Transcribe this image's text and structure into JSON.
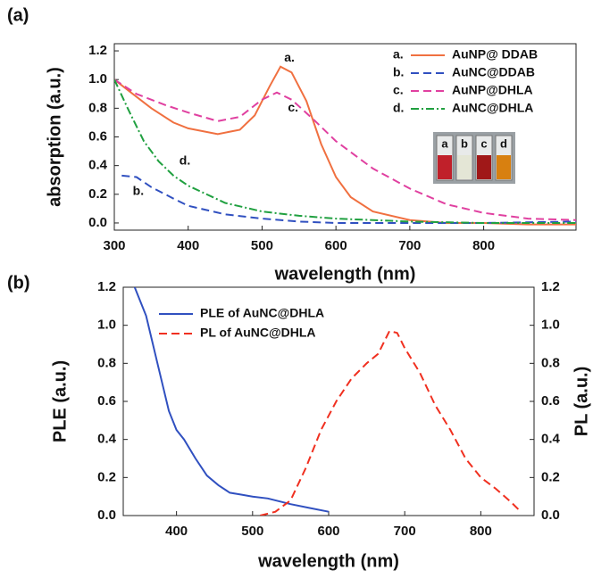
{
  "chart_data": [
    {
      "type": "line",
      "panel_label": "(a)",
      "xlabel": "wavelength (nm)",
      "ylabel": "absorption (a.u.)",
      "xlim": [
        300,
        925
      ],
      "xticks": [
        300,
        400,
        500,
        600,
        700,
        800
      ],
      "ylim": [
        -0.05,
        1.25
      ],
      "yticks": [
        {
          "value": 0,
          "label": "0.0"
        },
        0.2,
        0.4,
        0.6,
        0.8,
        {
          "value": 1,
          "label": "1.0"
        },
        1.2
      ],
      "legend": "upper right",
      "inset_labels": [
        "a",
        "b",
        "c",
        "d"
      ],
      "series": [
        {
          "tag": "a.",
          "name": "AuNP@ DDAB",
          "color": "#f07040",
          "linestyle": "solid",
          "x": [
            300,
            320,
            350,
            380,
            400,
            440,
            470,
            490,
            510,
            525,
            540,
            560,
            580,
            600,
            620,
            650,
            700,
            750,
            800,
            860,
            925
          ],
          "values": [
            1.0,
            0.92,
            0.8,
            0.7,
            0.66,
            0.62,
            0.65,
            0.75,
            0.95,
            1.09,
            1.05,
            0.85,
            0.55,
            0.32,
            0.18,
            0.08,
            0.02,
            0.0,
            0.0,
            -0.01,
            -0.01
          ]
        },
        {
          "tag": "b.",
          "name": "AuNC@DDAB",
          "color": "#3050c0",
          "linestyle": "dashed",
          "x": [
            310,
            330,
            350,
            380,
            400,
            450,
            500,
            550,
            600,
            700,
            800,
            925
          ],
          "values": [
            0.33,
            0.32,
            0.25,
            0.17,
            0.12,
            0.06,
            0.03,
            0.01,
            0.0,
            0.0,
            0.0,
            0.01
          ]
        },
        {
          "tag": "c.",
          "name": "AuNP@DHLA",
          "color": "#e040a0",
          "linestyle": "dashed",
          "x": [
            300,
            330,
            370,
            400,
            440,
            470,
            500,
            520,
            540,
            570,
            600,
            650,
            700,
            750,
            800,
            860,
            925
          ],
          "values": [
            1.0,
            0.9,
            0.82,
            0.77,
            0.71,
            0.74,
            0.86,
            0.91,
            0.86,
            0.72,
            0.57,
            0.38,
            0.24,
            0.13,
            0.07,
            0.03,
            0.02
          ]
        },
        {
          "tag": "d.",
          "name": "AuNC@DHLA",
          "color": "#20a040",
          "linestyle": "dashdot",
          "x": [
            300,
            320,
            340,
            360,
            380,
            400,
            450,
            500,
            550,
            600,
            700,
            800,
            925
          ],
          "values": [
            1.0,
            0.78,
            0.57,
            0.43,
            0.33,
            0.26,
            0.14,
            0.08,
            0.05,
            0.03,
            0.01,
            0.0,
            0.0
          ]
        }
      ]
    },
    {
      "type": "line",
      "panel_label": "(b)",
      "xlabel": "wavelength (nm)",
      "ylabel": "PLE (a.u.)",
      "y2label": "PL (a.u.)",
      "xlim": [
        330,
        870
      ],
      "xticks": [
        400,
        500,
        600,
        700,
        800
      ],
      "ylim": [
        0,
        1.2
      ],
      "yticks": [
        {
          "value": 0,
          "label": "0.0"
        },
        0.2,
        0.4,
        0.6,
        0.8,
        {
          "value": 1,
          "label": "1.0"
        },
        1.2
      ],
      "y2lim": [
        0,
        1.2
      ],
      "y2ticks": [
        {
          "value": 0,
          "label": "0.0"
        },
        0.2,
        0.4,
        0.6,
        0.8,
        {
          "value": 1,
          "label": "1.0"
        },
        1.2
      ],
      "legend": "upper left",
      "series": [
        {
          "name": "PLE of AuNC@DHLA",
          "color": "#3050c0",
          "linestyle": "solid",
          "x": [
            345,
            360,
            375,
            390,
            400,
            410,
            425,
            440,
            455,
            470,
            485,
            500,
            520,
            550,
            575,
            600
          ],
          "values": [
            1.2,
            1.05,
            0.8,
            0.55,
            0.45,
            0.4,
            0.3,
            0.21,
            0.16,
            0.12,
            0.11,
            0.1,
            0.09,
            0.06,
            0.04,
            0.02
          ]
        },
        {
          "name": "PL of AuNC@DHLA",
          "color": "#f03020",
          "linestyle": "dashed",
          "axis": "y2",
          "x": [
            510,
            530,
            550,
            570,
            590,
            610,
            630,
            650,
            665,
            680,
            690,
            700,
            720,
            740,
            760,
            780,
            800,
            820,
            840,
            850
          ],
          "values": [
            0.0,
            0.02,
            0.08,
            0.25,
            0.45,
            0.6,
            0.72,
            0.8,
            0.85,
            0.97,
            0.96,
            0.88,
            0.75,
            0.58,
            0.45,
            0.3,
            0.2,
            0.14,
            0.07,
            0.03
          ]
        }
      ]
    }
  ]
}
